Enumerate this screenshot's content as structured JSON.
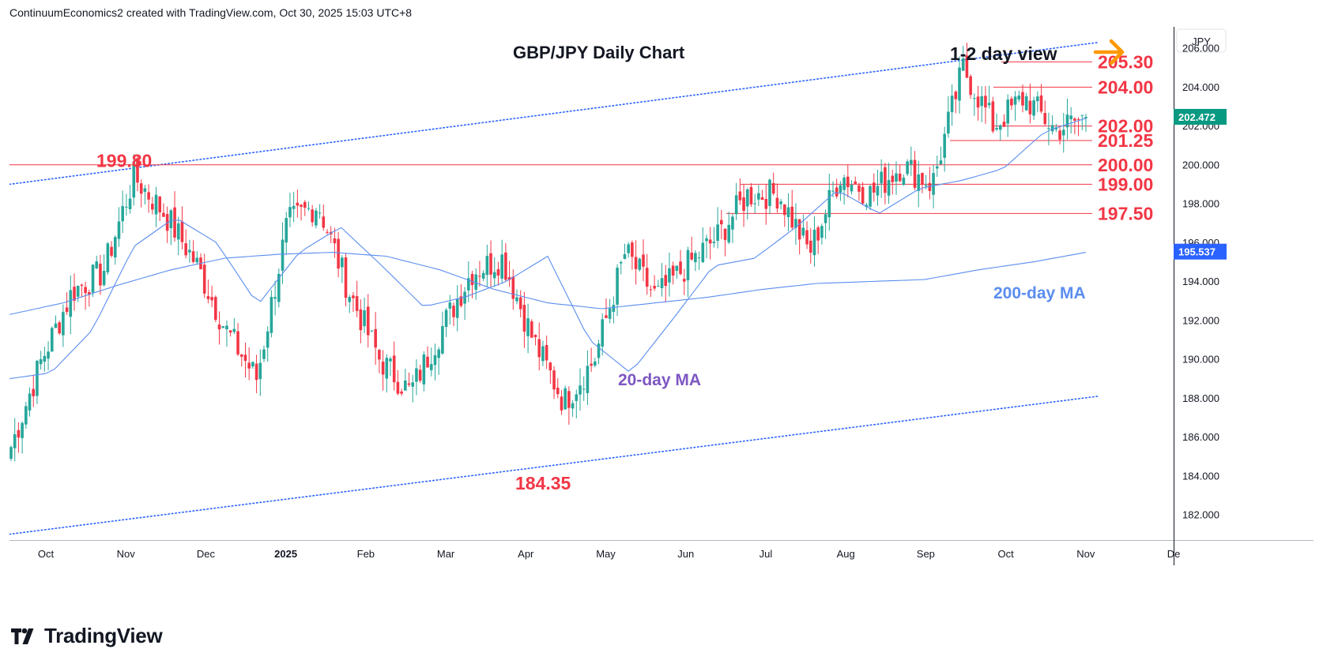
{
  "header": {
    "credit": "ContinuumEconomics2 created with TradingView.com, Oct 30, 2025 15:03 UTC+8"
  },
  "branding": {
    "name": "TradingView"
  },
  "chart_data": {
    "type": "candlestick",
    "title": "GBP/JPY Daily Chart",
    "subtitle": "1-2 day view",
    "currency_label": "JPY",
    "y_ticks": [
      "182.000",
      "184.000",
      "186.000",
      "188.000",
      "190.000",
      "192.000",
      "194.000",
      "196.000",
      "198.000",
      "200.000",
      "202.000",
      "204.000",
      "206.000"
    ],
    "ylim": [
      180.7,
      207.1
    ],
    "x_ticks": [
      "Oct",
      "Nov",
      "Dec",
      "2025",
      "Feb",
      "Mar",
      "Apr",
      "May",
      "Jun",
      "Jul",
      "Aug",
      "Sep",
      "Oct",
      "Nov",
      "De"
    ],
    "last_price": "202.472",
    "ma200_value": "195.537",
    "colors": {
      "up": "#26a69a",
      "down": "#f23645",
      "ma": "#5b8def",
      "level": "#f23645",
      "arrow": "#ff9800",
      "trend": "#2962ff",
      "label_red": "#f23645",
      "label_ma20": "#7e57c2",
      "label_ma200": "#5b8def"
    },
    "levels": [
      {
        "label": "205.30",
        "value": 205.3
      },
      {
        "label": "204.00",
        "value": 204.0
      },
      {
        "label": "202.00",
        "value": 202.0
      },
      {
        "label": "201.25",
        "value": 201.25
      },
      {
        "label": "200.00",
        "value": 200.0
      },
      {
        "label": "199.00",
        "value": 199.0
      },
      {
        "label": "197.50",
        "value": 197.5
      }
    ],
    "annotations": [
      {
        "text": "199.80",
        "value": 199.8
      },
      {
        "text": "184.35",
        "value": 184.35
      },
      {
        "text": "20-day MA"
      },
      {
        "text": "200-day MA"
      }
    ],
    "trendlines": [
      {
        "name": "upper-channel",
        "start": 199.0,
        "end": 206.3
      },
      {
        "name": "lower-channel",
        "start": 181.0,
        "end": 188.1
      }
    ],
    "ma200": [
      192.3,
      192.9,
      193.8,
      194.6,
      195.2,
      195.4,
      195.5,
      195.3,
      194.6,
      193.6,
      192.9,
      192.6,
      192.9,
      193.2,
      193.6,
      193.9,
      194.0,
      194.1,
      194.6,
      195.0,
      195.5
    ],
    "ma20": [
      189.0,
      189.3,
      191.5,
      195.8,
      197.3,
      196.0,
      192.8,
      195.5,
      196.8,
      194.8,
      192.7,
      193.2,
      194.0,
      195.3,
      191.0,
      189.3,
      192.0,
      194.8,
      195.2,
      196.8,
      198.7,
      197.5,
      198.8,
      199.2,
      199.8,
      201.7,
      202.4
    ],
    "ohlc_anchor_closes": [
      185.5,
      190.0,
      193.5,
      194.5,
      199.4,
      197.5,
      195.0,
      191.5,
      189.0,
      197.0,
      198.0,
      193.5,
      190.0,
      188.3,
      191.5,
      194.5,
      195.2,
      191.0,
      187.8,
      190.0,
      195.5,
      193.2,
      194.8,
      196.3,
      198.5,
      198.5,
      195.5,
      199.5,
      198.5,
      200.0,
      199.0,
      205.0,
      202.0,
      203.5,
      201.8,
      202.47
    ]
  }
}
